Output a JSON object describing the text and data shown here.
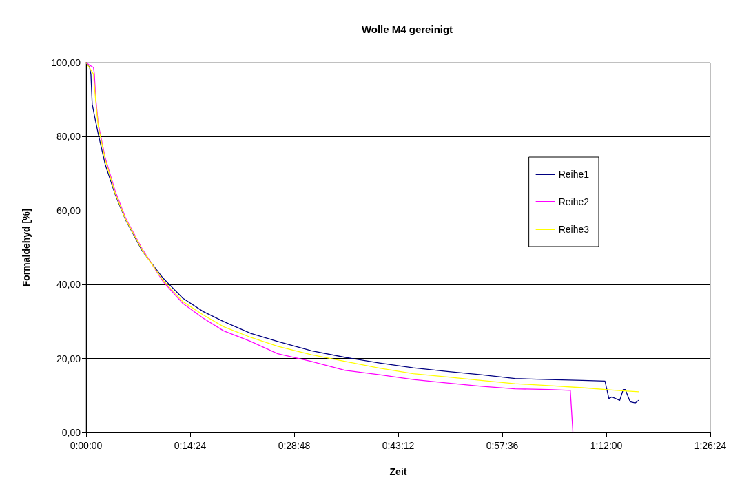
{
  "chart_data": {
    "type": "line",
    "title": "Wolle M4 gereinigt",
    "xlabel": "Zeit",
    "ylabel": "Formaldehyd [%]",
    "xlim": [
      0,
      1.44
    ],
    "xticks": [
      {
        "value": 0,
        "label": "0:00:00"
      },
      {
        "value": 0.24,
        "label": "0:14:24"
      },
      {
        "value": 0.48,
        "label": "0:28:48"
      },
      {
        "value": 0.72,
        "label": "0:43:12"
      },
      {
        "value": 0.96,
        "label": "0:57:36"
      },
      {
        "value": 1.2,
        "label": "1:12:00"
      },
      {
        "value": 1.44,
        "label": "1:26:24"
      }
    ],
    "ylim": [
      0,
      100
    ],
    "yticks": [
      {
        "value": 0,
        "label": "0,00"
      },
      {
        "value": 20,
        "label": "20,00"
      },
      {
        "value": 40,
        "label": "40,00"
      },
      {
        "value": 60,
        "label": "60,00"
      },
      {
        "value": 80,
        "label": "80,00"
      },
      {
        "value": 100,
        "label": "100,00"
      }
    ],
    "grid": "y",
    "legend": "right",
    "marker": "none",
    "line_style": "solid",
    "series": [
      {
        "name": "Reihe1",
        "color": "#000080",
        "x": [
          0,
          0.008,
          0.011,
          0.014,
          0.02,
          0.028,
          0.044,
          0.067,
          0.091,
          0.13,
          0.177,
          0.223,
          0.27,
          0.317,
          0.38,
          0.442,
          0.52,
          0.598,
          0.677,
          0.755,
          0.833,
          0.911,
          0.989,
          1.067,
          1.145,
          1.197,
          1.206,
          1.213,
          1.231,
          1.239,
          1.244,
          1.255,
          1.267,
          1.275
        ],
        "values": [
          100,
          98.7,
          96.9,
          88.8,
          85.2,
          80.7,
          72.5,
          64.4,
          57.5,
          49,
          41.8,
          36.3,
          32.7,
          30,
          26.8,
          24.6,
          22.1,
          20.3,
          18.8,
          17.5,
          16.5,
          15.6,
          14.6,
          14.3,
          14.1,
          13.9,
          9.2,
          9.6,
          8.7,
          11.6,
          11.6,
          8.3,
          8,
          8.7
        ]
      },
      {
        "name": "Reihe2",
        "color": "#ff00ff",
        "x": [
          0,
          0.008,
          0.017,
          0.019,
          0.022,
          0.028,
          0.044,
          0.067,
          0.091,
          0.13,
          0.177,
          0.223,
          0.27,
          0.317,
          0.38,
          0.442,
          0.52,
          0.598,
          0.677,
          0.755,
          0.833,
          0.911,
          0.989,
          1.067,
          1.117,
          1.123
        ],
        "values": [
          100,
          99.3,
          98.7,
          96.9,
          90.6,
          83.4,
          74.3,
          65.3,
          58,
          49.5,
          40.9,
          34.9,
          30.9,
          27.5,
          24.6,
          21.3,
          19.2,
          16.8,
          15.6,
          14.3,
          13.4,
          12.5,
          11.8,
          11.6,
          11.4,
          0
        ]
      },
      {
        "name": "Reihe3",
        "color": "#ffff00",
        "x": [
          0,
          0.0125,
          0.017,
          0.022,
          0.028,
          0.044,
          0.067,
          0.091,
          0.13,
          0.177,
          0.223,
          0.27,
          0.317,
          0.38,
          0.442,
          0.52,
          0.598,
          0.677,
          0.755,
          0.833,
          0.911,
          0.989,
          1.067,
          1.145,
          1.223,
          1.275
        ],
        "values": [
          100,
          97.8,
          96.9,
          89.7,
          82.8,
          73.8,
          64.7,
          57.7,
          49.2,
          41.2,
          35.4,
          31.8,
          28.6,
          25.7,
          23.3,
          21,
          19.2,
          17.4,
          15.9,
          15,
          14.1,
          13.2,
          12.7,
          12.1,
          11.4,
          11
        ]
      }
    ]
  }
}
